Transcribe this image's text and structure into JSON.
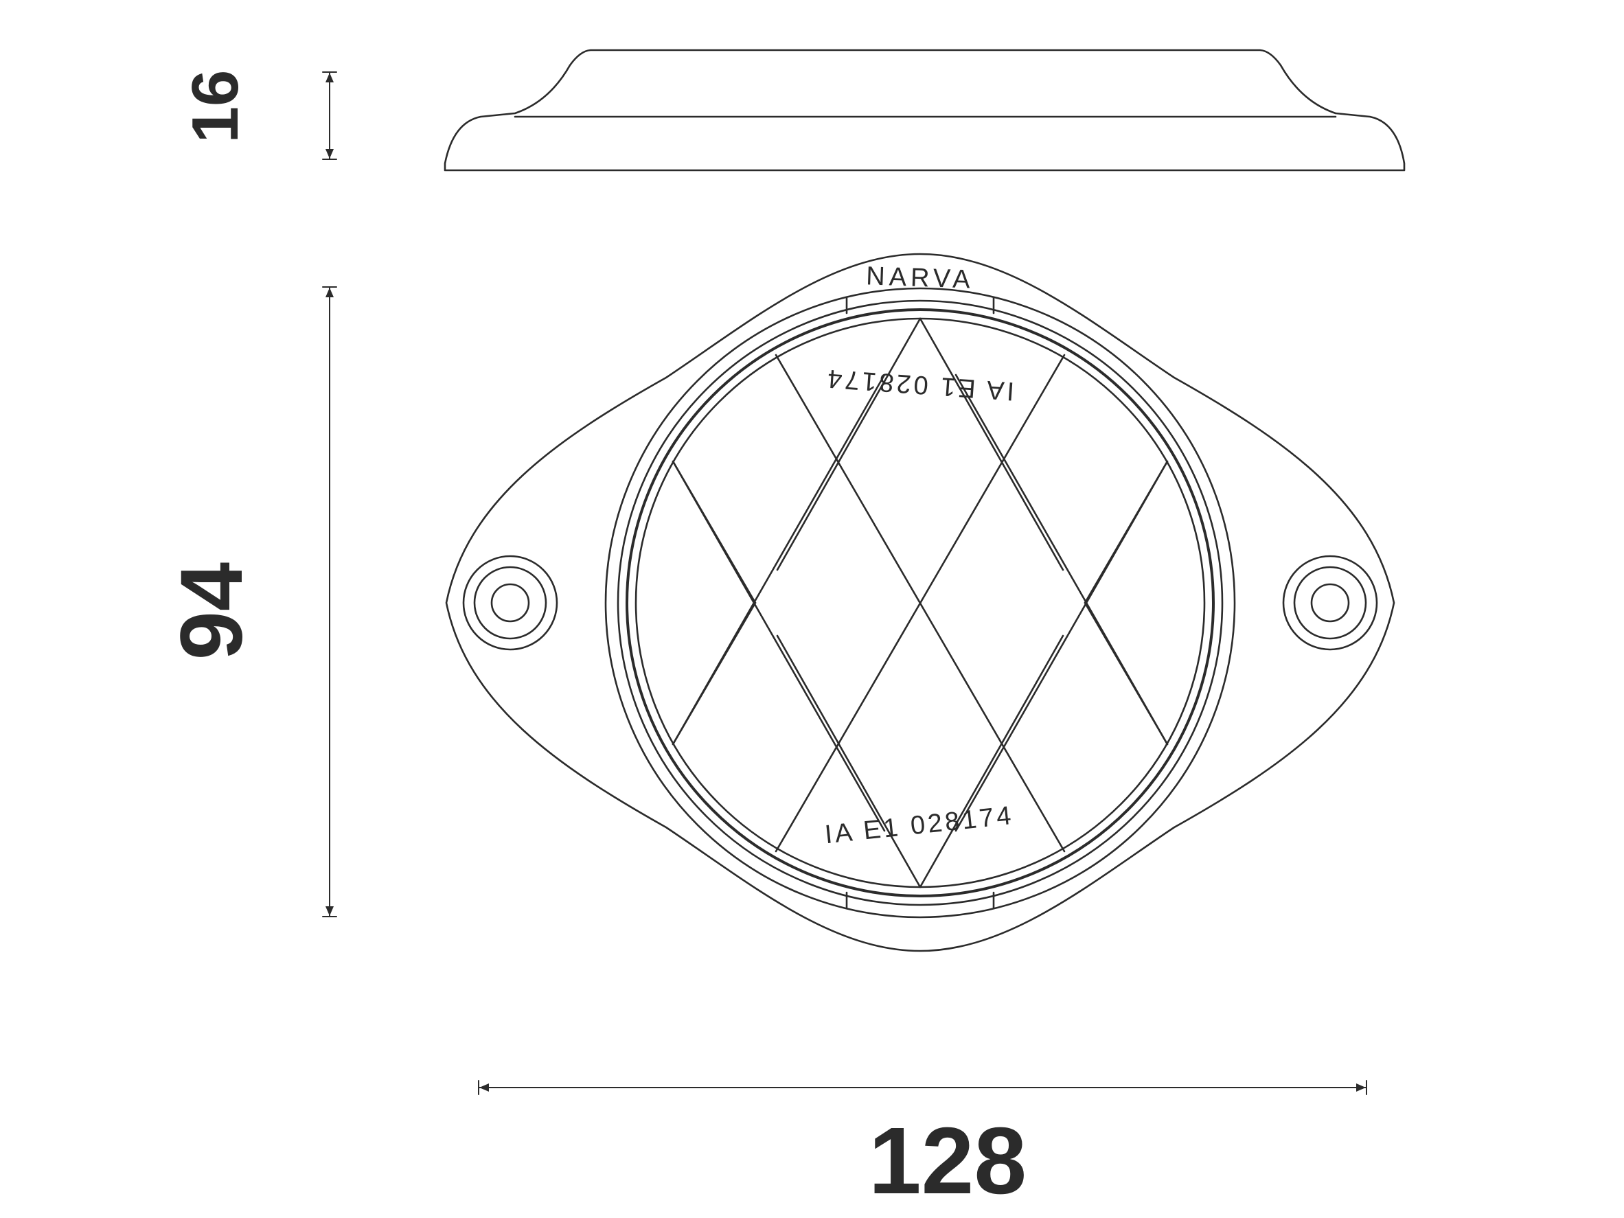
{
  "dimensions": {
    "height": "16",
    "length": "94",
    "width": "128"
  },
  "markings": {
    "brand": "NARVA",
    "approval_code": "IA E1 028174"
  },
  "colors": {
    "line": "#2b2b2b",
    "background": "#ffffff"
  }
}
